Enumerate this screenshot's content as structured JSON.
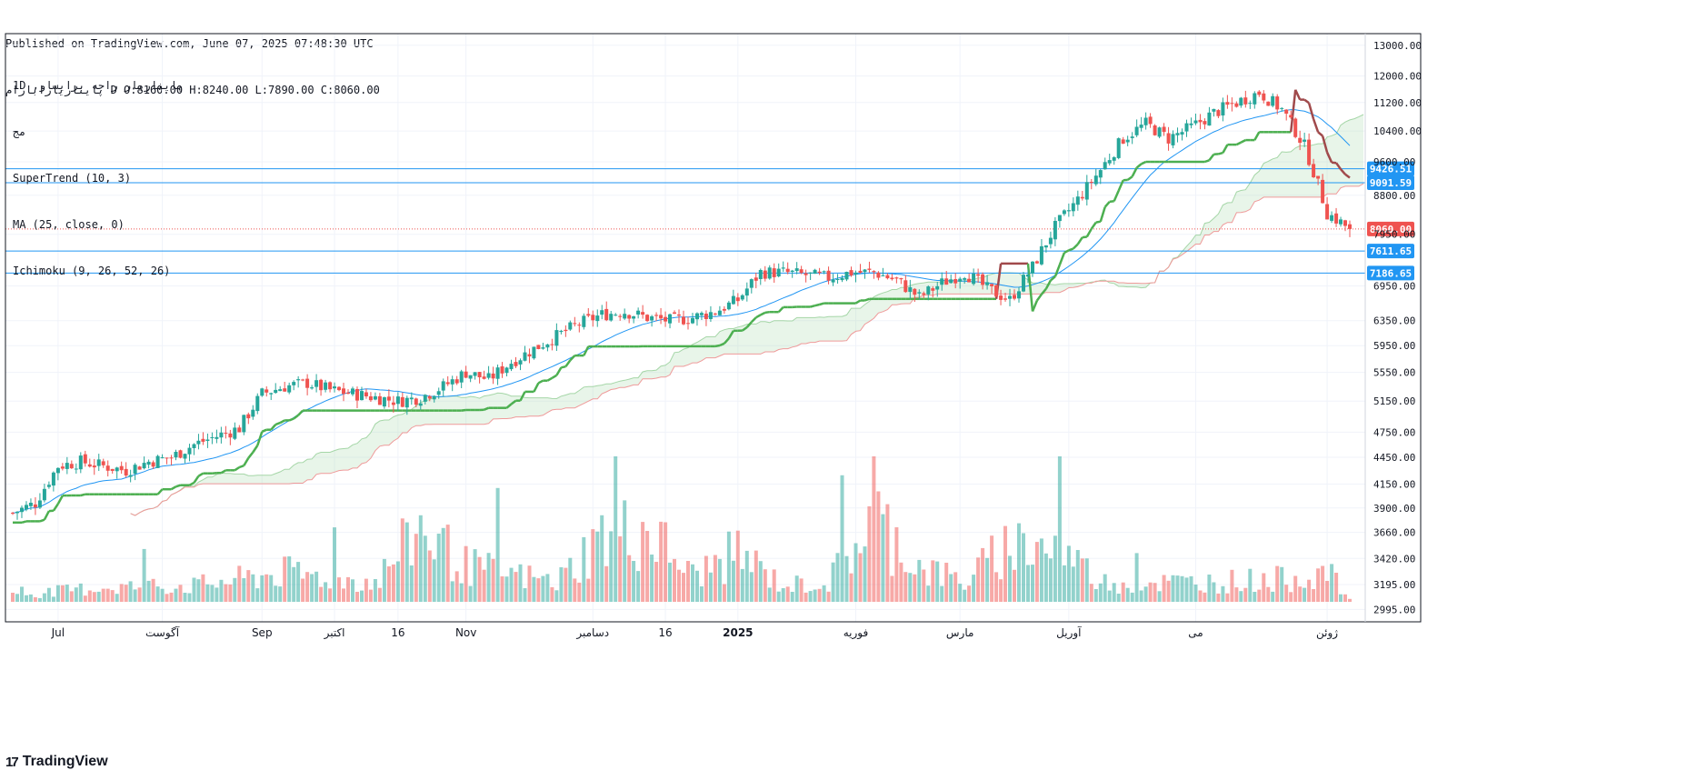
{
  "header": {
    "published_line": "Published on TradingView.com, June 07, 2025 07:48:30 UTC",
    "ohlc_line": "پایناریارابارام ‎D O:8160.00 H:8240.00 L:7890.00 C:8060.00"
  },
  "legend": {
    "symbol_line": "1D ,پایناریار راجه برایساو",
    "sub_line": "مج",
    "supertrend": "SuperTrend (10, 3)",
    "ma": "MA (25, close, 0)",
    "ichimoku": "Ichimoku (9, 26, 52, 26)"
  },
  "brand": {
    "name": "TradingView",
    "icon": "tradingview-logo-icon"
  },
  "colors": {
    "up": "#26a69a",
    "down": "#ef5350",
    "supertrend_up": "#4caf50",
    "supertrend_down": "#a0494b",
    "ma": "#2196f3",
    "cloud": "#a5d6a7",
    "span_b": "#ef9a9a",
    "hline": "#2196f3",
    "last_price": "#ef5350",
    "grid": "#f0f3fa"
  },
  "chart_data": {
    "type": "candlestick",
    "timeframe": "1D",
    "last_price": 8060.0,
    "ohlc_last": {
      "open": 8160.0,
      "high": 8240.0,
      "low": 7890.0,
      "close": 8060.0
    },
    "y_axis": {
      "ticks": [
        2995,
        3195,
        3420,
        3660,
        3900,
        4150,
        4450,
        4750,
        5150,
        5550,
        5950,
        6350,
        6950,
        7950,
        8800,
        9600,
        10400,
        11200,
        12000,
        13000
      ],
      "tick_labels": [
        "2995.00",
        "3195.00",
        "3420.00",
        "3660.00",
        "3900.00",
        "4150.00",
        "4450.00",
        "4750.00",
        "5150.00",
        "5550.00",
        "5950.00",
        "6350.00",
        "6950.00",
        "7950.00",
        "8800.00",
        "9600.00",
        "10400.00",
        "11200.00",
        "12000.00",
        "13000.00"
      ],
      "scale": "log",
      "range": [
        2900,
        13400
      ]
    },
    "x_axis": {
      "labels": [
        {
          "label": "Jul",
          "i": 10
        },
        {
          "label": "آگوست",
          "i": 33
        },
        {
          "label": "Sep",
          "i": 55
        },
        {
          "label": "اکتبر",
          "i": 71
        },
        {
          "label": "16",
          "i": 85
        },
        {
          "label": "Nov",
          "i": 100
        },
        {
          "label": "دسامبر",
          "i": 128
        },
        {
          "label": "16",
          "i": 144
        },
        {
          "label": "2025",
          "i": 160
        },
        {
          "label": "فوریه",
          "i": 186
        },
        {
          "label": "مارس",
          "i": 209
        },
        {
          "label": "آوریل",
          "i": 233
        },
        {
          "label": "می",
          "i": 261
        },
        {
          "label": "ژوئن",
          "i": 290
        }
      ],
      "count": 296
    },
    "horizontal_levels": [
      {
        "value": 9426.51,
        "label": "9426.51"
      },
      {
        "value": 9091.59,
        "label": "9091.59"
      },
      {
        "value": 7611.65,
        "label": "7611.65"
      },
      {
        "value": 7186.65,
        "label": "7186.65"
      }
    ],
    "last_price_label": "8060.00",
    "close_anchors": [
      [
        0,
        3850
      ],
      [
        5,
        3950
      ],
      [
        10,
        4350
      ],
      [
        15,
        4400
      ],
      [
        20,
        4350
      ],
      [
        25,
        4300
      ],
      [
        30,
        4400
      ],
      [
        35,
        4450
      ],
      [
        40,
        4600
      ],
      [
        45,
        4700
      ],
      [
        50,
        4800
      ],
      [
        55,
        5250
      ],
      [
        60,
        5350
      ],
      [
        65,
        5400
      ],
      [
        70,
        5300
      ],
      [
        75,
        5250
      ],
      [
        80,
        5200
      ],
      [
        85,
        5150
      ],
      [
        90,
        5200
      ],
      [
        95,
        5350
      ],
      [
        100,
        5550
      ],
      [
        105,
        5450
      ],
      [
        110,
        5700
      ],
      [
        115,
        5900
      ],
      [
        120,
        6100
      ],
      [
        125,
        6300
      ],
      [
        130,
        6450
      ],
      [
        135,
        6500
      ],
      [
        140,
        6400
      ],
      [
        145,
        6350
      ],
      [
        150,
        6400
      ],
      [
        155,
        6500
      ],
      [
        160,
        6700
      ],
      [
        165,
        7200
      ],
      [
        170,
        7200
      ],
      [
        175,
        7150
      ],
      [
        180,
        7100
      ],
      [
        185,
        7200
      ],
      [
        190,
        7200
      ],
      [
        195,
        7050
      ],
      [
        200,
        6750
      ],
      [
        205,
        7000
      ],
      [
        210,
        7200
      ],
      [
        215,
        6900
      ],
      [
        220,
        6700
      ],
      [
        225,
        7300
      ],
      [
        230,
        8100
      ],
      [
        235,
        8700
      ],
      [
        240,
        9400
      ],
      [
        245,
        10200
      ],
      [
        250,
        10600
      ],
      [
        255,
        10200
      ],
      [
        260,
        10500
      ],
      [
        265,
        10900
      ],
      [
        270,
        11200
      ],
      [
        275,
        11500
      ],
      [
        280,
        11000
      ],
      [
        285,
        10000
      ],
      [
        290,
        8400
      ],
      [
        295,
        8060
      ]
    ],
    "volume_anchors": [
      [
        0,
        20
      ],
      [
        20,
        45
      ],
      [
        40,
        50
      ],
      [
        60,
        90
      ],
      [
        80,
        60
      ],
      [
        90,
        230
      ],
      [
        100,
        110
      ],
      [
        120,
        60
      ],
      [
        130,
        200
      ],
      [
        140,
        220
      ],
      [
        150,
        80
      ],
      [
        160,
        150
      ],
      [
        170,
        50
      ],
      [
        180,
        60
      ],
      [
        190,
        260
      ],
      [
        200,
        110
      ],
      [
        210,
        60
      ],
      [
        220,
        180
      ],
      [
        230,
        170
      ],
      [
        240,
        60
      ],
      [
        260,
        60
      ],
      [
        280,
        70
      ],
      [
        290,
        90
      ],
      [
        295,
        10
      ]
    ],
    "volume_range": [
      0,
      450
    ]
  }
}
